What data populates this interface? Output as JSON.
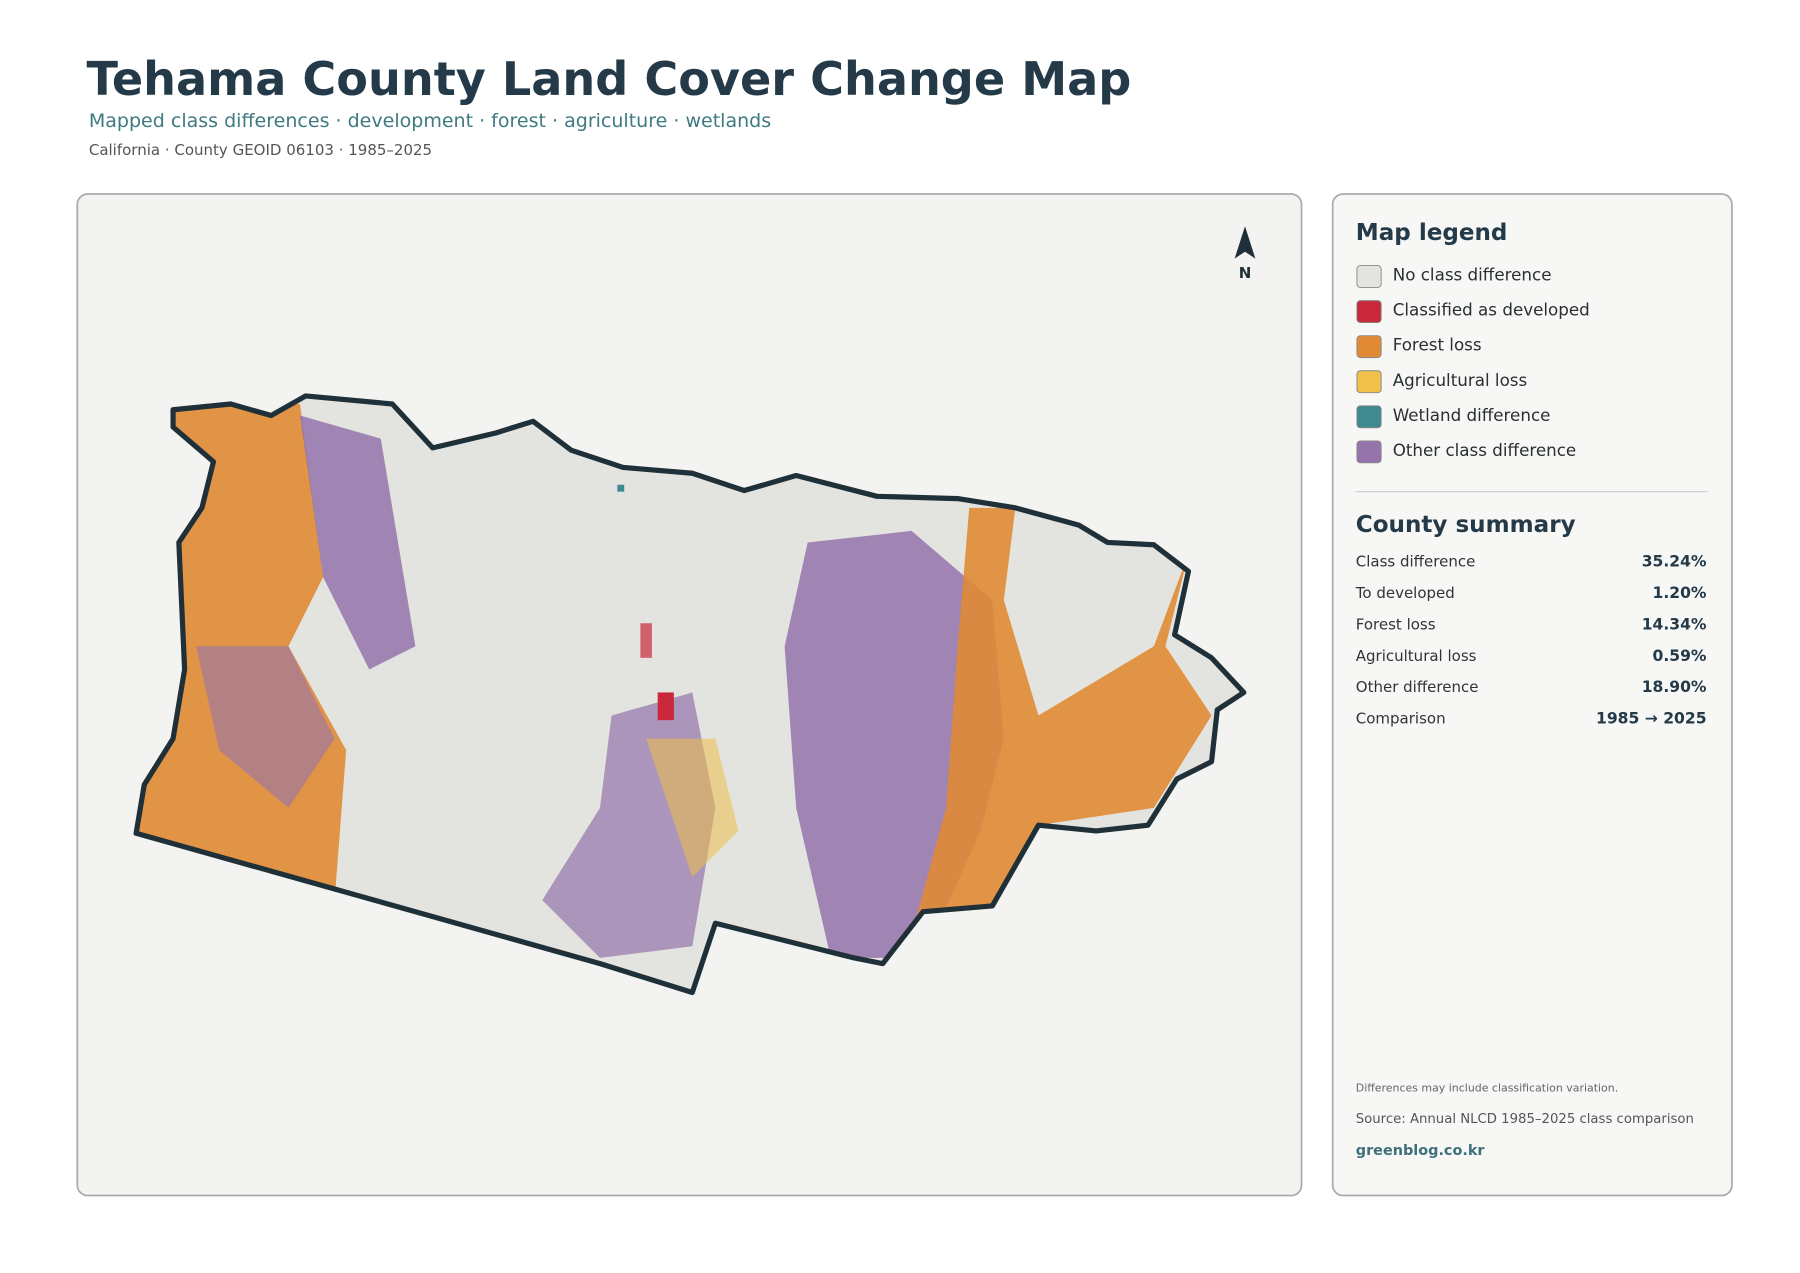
{
  "header": {
    "title": "Tehama County Land Cover Change Map",
    "subtitle": "Mapped class differences · development · forest · agriculture · wetlands",
    "meta": "California · County GEOID 06103 · 1985–2025"
  },
  "map": {
    "north": "N"
  },
  "legend": {
    "title": "Map legend",
    "items": [
      {
        "label": "No class difference",
        "color": "#e3e3e0"
      },
      {
        "label": "Classified as developed",
        "color": "#c8283a"
      },
      {
        "label": "Forest loss",
        "color": "#e08a35"
      },
      {
        "label": "Agricultural loss",
        "color": "#efc04a"
      },
      {
        "label": "Wetland difference",
        "color": "#3f8a91"
      },
      {
        "label": "Other class difference",
        "color": "#9474ab"
      }
    ]
  },
  "summary": {
    "title": "County summary",
    "rows": [
      [
        "Class difference",
        "35.24%"
      ],
      [
        "To developed",
        "1.20%"
      ],
      [
        "Forest loss",
        "14.34%"
      ],
      [
        "Agricultural loss",
        "0.59%"
      ],
      [
        "Other difference",
        "18.90%"
      ],
      [
        "Comparison",
        "1985 → 2025"
      ]
    ]
  },
  "footer": {
    "note": "Differences may include classification variation.",
    "source": "Source: Annual NLCD 1985–2025 class comparison",
    "site": "greenblog.co.kr"
  }
}
